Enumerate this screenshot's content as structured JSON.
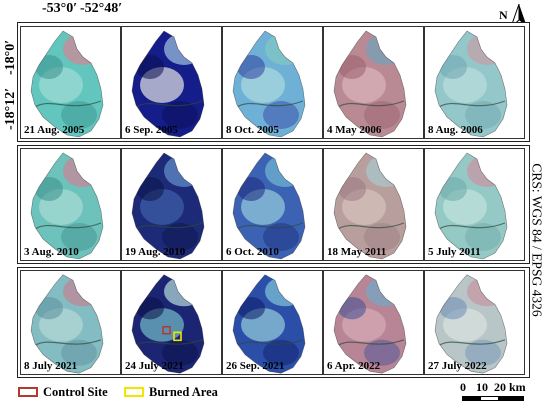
{
  "coordinates": {
    "top_left": "-53°0′",
    "top_right": "-52°48′",
    "left_top": "-18°0′",
    "left_bottom": "-18°12′"
  },
  "north_label": "N",
  "crs_label": "CRS: WGS 84 / EPSG 4326",
  "legend": {
    "control_site": "Control Site",
    "burned_area": "Burned Area",
    "control_color": "#b03a2e",
    "burned_color": "#f2e600"
  },
  "scale_bar": {
    "labels": [
      "0",
      "10",
      "20 km"
    ]
  },
  "panels": [
    {
      "date": "21 Aug. 2005",
      "base": "#62c6bf",
      "accent": "#9fdad4",
      "dark": "#3a8f8b",
      "red": "#c98b9a"
    },
    {
      "date": "6 Sep. 2005",
      "base": "#151d8a",
      "accent": "#d7d8de",
      "dark": "#0b0f4f",
      "red": "#8fb0d4"
    },
    {
      "date": "8 Oct. 2005",
      "base": "#6fb0d6",
      "accent": "#a8d8df",
      "dark": "#2f3fa0",
      "red": "#7fc6c3"
    },
    {
      "date": "4 May 2006",
      "base": "#b98a93",
      "accent": "#d9b2b8",
      "dark": "#9a5e6e",
      "red": "#7a9fb6"
    },
    {
      "date": "8 Aug. 2006",
      "base": "#93c7c9",
      "accent": "#b8dcdb",
      "dark": "#6fa6b0",
      "red": "#c2a2ab"
    },
    {
      "date": "3 Aug. 2010",
      "base": "#6ec2bc",
      "accent": "#a4d9d3",
      "dark": "#3c8f8c",
      "red": "#c28a98"
    },
    {
      "date": "19 Aug. 2010",
      "base": "#1c2a78",
      "accent": "#3e5ea6",
      "dark": "#0c1448",
      "red": "#5d84c0"
    },
    {
      "date": "6 Oct. 2010",
      "base": "#3c63b3",
      "accent": "#8fc5da",
      "dark": "#1b2a7a",
      "red": "#6aaed0"
    },
    {
      "date": "18 May 2011",
      "base": "#b89e9c",
      "accent": "#d6c0bb",
      "dark": "#9b7a83",
      "red": "#a9c3c8"
    },
    {
      "date": "5 July 2011",
      "base": "#94c9c5",
      "accent": "#bfe0db",
      "dark": "#6ca9a9",
      "red": "#c49aa6"
    },
    {
      "date": "8 July 2021",
      "base": "#83bcc2",
      "accent": "#b3d8d6",
      "dark": "#5d8f9e",
      "red": "#bb8a98"
    },
    {
      "date": "24 July 2021",
      "base": "#1b2573",
      "accent": "#6fb4c4",
      "dark": "#0b1046",
      "red": "#a4c8cf"
    },
    {
      "date": "26 Sep. 2021",
      "base": "#2b4fa8",
      "accent": "#8fc6d6",
      "dark": "#0f1b66",
      "red": "#77b6cf"
    },
    {
      "date": "6 Apr. 2022",
      "base": "#b78596",
      "accent": "#d6a9b4",
      "dark": "#3e4e98",
      "red": "#7aa4c2"
    },
    {
      "date": "27 July 2022",
      "base": "#b9c6c8",
      "accent": "#d8e0df",
      "dark": "#6a8db4",
      "red": "#c69ba6"
    }
  ]
}
